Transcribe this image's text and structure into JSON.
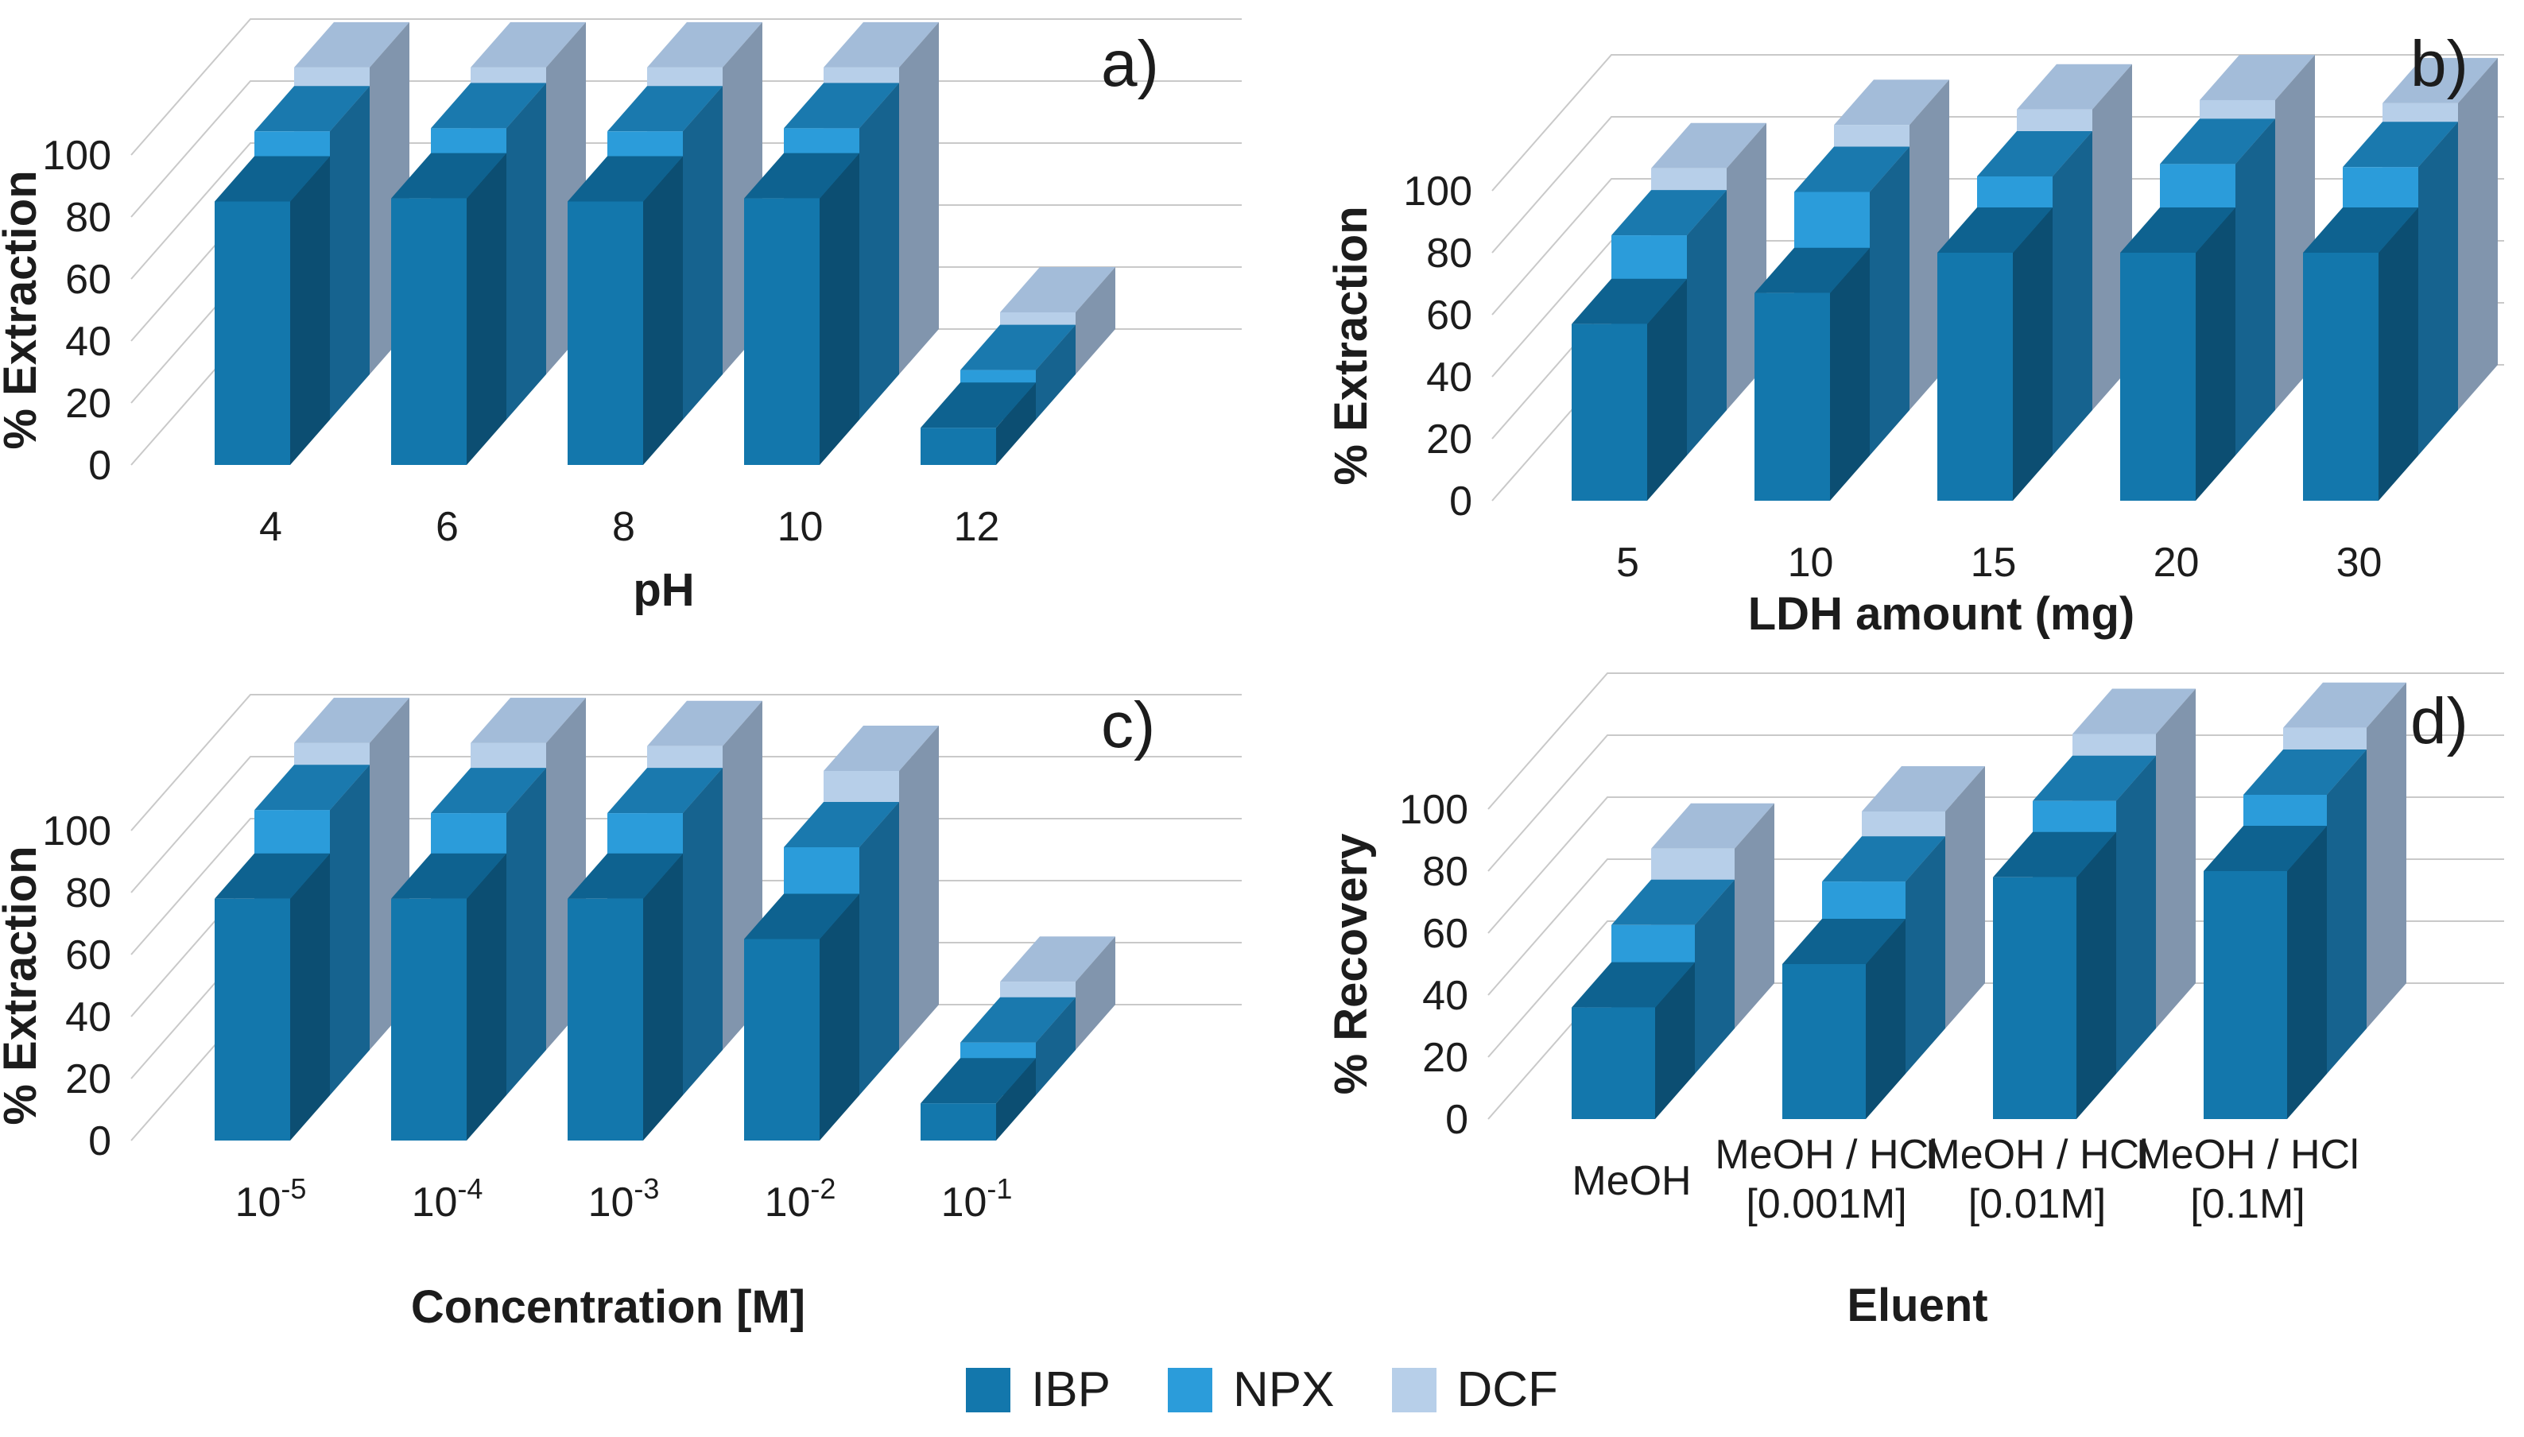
{
  "figure": {
    "background": "#ffffff",
    "grid_color": "#c9c9c9",
    "text_color": "#1c1c1c"
  },
  "legend": {
    "items": [
      {
        "label": "IBP",
        "front": "#1377ac",
        "side": "#0c4e72",
        "top": "#0e6290"
      },
      {
        "label": "NPX",
        "front": "#2b9cda",
        "side": "#16638f",
        "top": "#1a79ae"
      },
      {
        "label": "DCF",
        "front": "#b7cfe9",
        "side": "#8195ad",
        "top": "#a3bcd9"
      }
    ]
  },
  "chart_data": [
    {
      "type": "bar",
      "letter": "a)",
      "title": "",
      "xlabel": "pH",
      "ylabel": "% Extraction",
      "ylim": [
        0,
        100
      ],
      "yticks": [
        0,
        20,
        40,
        60,
        80,
        100
      ],
      "grid": true,
      "legend_position": "bottom",
      "categories": [
        "4",
        "6",
        "8",
        "10",
        "12"
      ],
      "series": [
        {
          "name": "IBP",
          "values": [
            85,
            86,
            85,
            86,
            12
          ]
        },
        {
          "name": "NPX",
          "values": [
            93,
            94,
            93,
            94,
            16
          ]
        },
        {
          "name": "DCF",
          "values": [
            99,
            99,
            99,
            99,
            20
          ]
        }
      ]
    },
    {
      "type": "bar",
      "letter": "b)",
      "title": "",
      "xlabel": "LDH amount (mg)",
      "ylabel": "% Extraction",
      "ylim": [
        0,
        100
      ],
      "yticks": [
        0,
        20,
        40,
        60,
        80,
        100
      ],
      "grid": true,
      "legend_position": "bottom",
      "categories": [
        "5",
        "10",
        "15",
        "20",
        "30"
      ],
      "series": [
        {
          "name": "IBP",
          "values": [
            57,
            67,
            80,
            80,
            80
          ]
        },
        {
          "name": "NPX",
          "values": [
            71,
            85,
            90,
            94,
            93
          ]
        },
        {
          "name": "DCF",
          "values": [
            78,
            92,
            97,
            100,
            99
          ]
        }
      ]
    },
    {
      "type": "bar",
      "letter": "c)",
      "title": "",
      "xlabel": "Concentration [M]",
      "ylabel": "% Extraction",
      "ylim": [
        0,
        100
      ],
      "yticks": [
        0,
        20,
        40,
        60,
        80,
        100
      ],
      "grid": true,
      "legend_position": "bottom",
      "categories": [
        "10^-5",
        "10^-4",
        "10^-3",
        "10^-2",
        "10^-1"
      ],
      "series": [
        {
          "name": "IBP",
          "values": [
            78,
            78,
            78,
            65,
            12
          ]
        },
        {
          "name": "NPX",
          "values": [
            92,
            91,
            91,
            80,
            17
          ]
        },
        {
          "name": "DCF",
          "values": [
            99,
            99,
            98,
            90,
            22
          ]
        }
      ]
    },
    {
      "type": "bar",
      "letter": "d)",
      "title": "",
      "xlabel": "Eluent",
      "ylabel": "% Recovery",
      "ylim": [
        0,
        100
      ],
      "yticks": [
        0,
        20,
        40,
        60,
        80,
        100
      ],
      "grid": true,
      "legend_position": "bottom",
      "categories": [
        "MeOH",
        "MeOH / HCl\n[0.001M]",
        "MeOH / HCl\n[0.01M]",
        "MeOH / HCl\n[0.1M]"
      ],
      "series": [
        {
          "name": "IBP",
          "values": [
            36,
            50,
            78,
            80
          ]
        },
        {
          "name": "NPX",
          "values": [
            48,
            62,
            88,
            90
          ]
        },
        {
          "name": "DCF",
          "values": [
            58,
            70,
            95,
            97
          ]
        }
      ]
    }
  ]
}
